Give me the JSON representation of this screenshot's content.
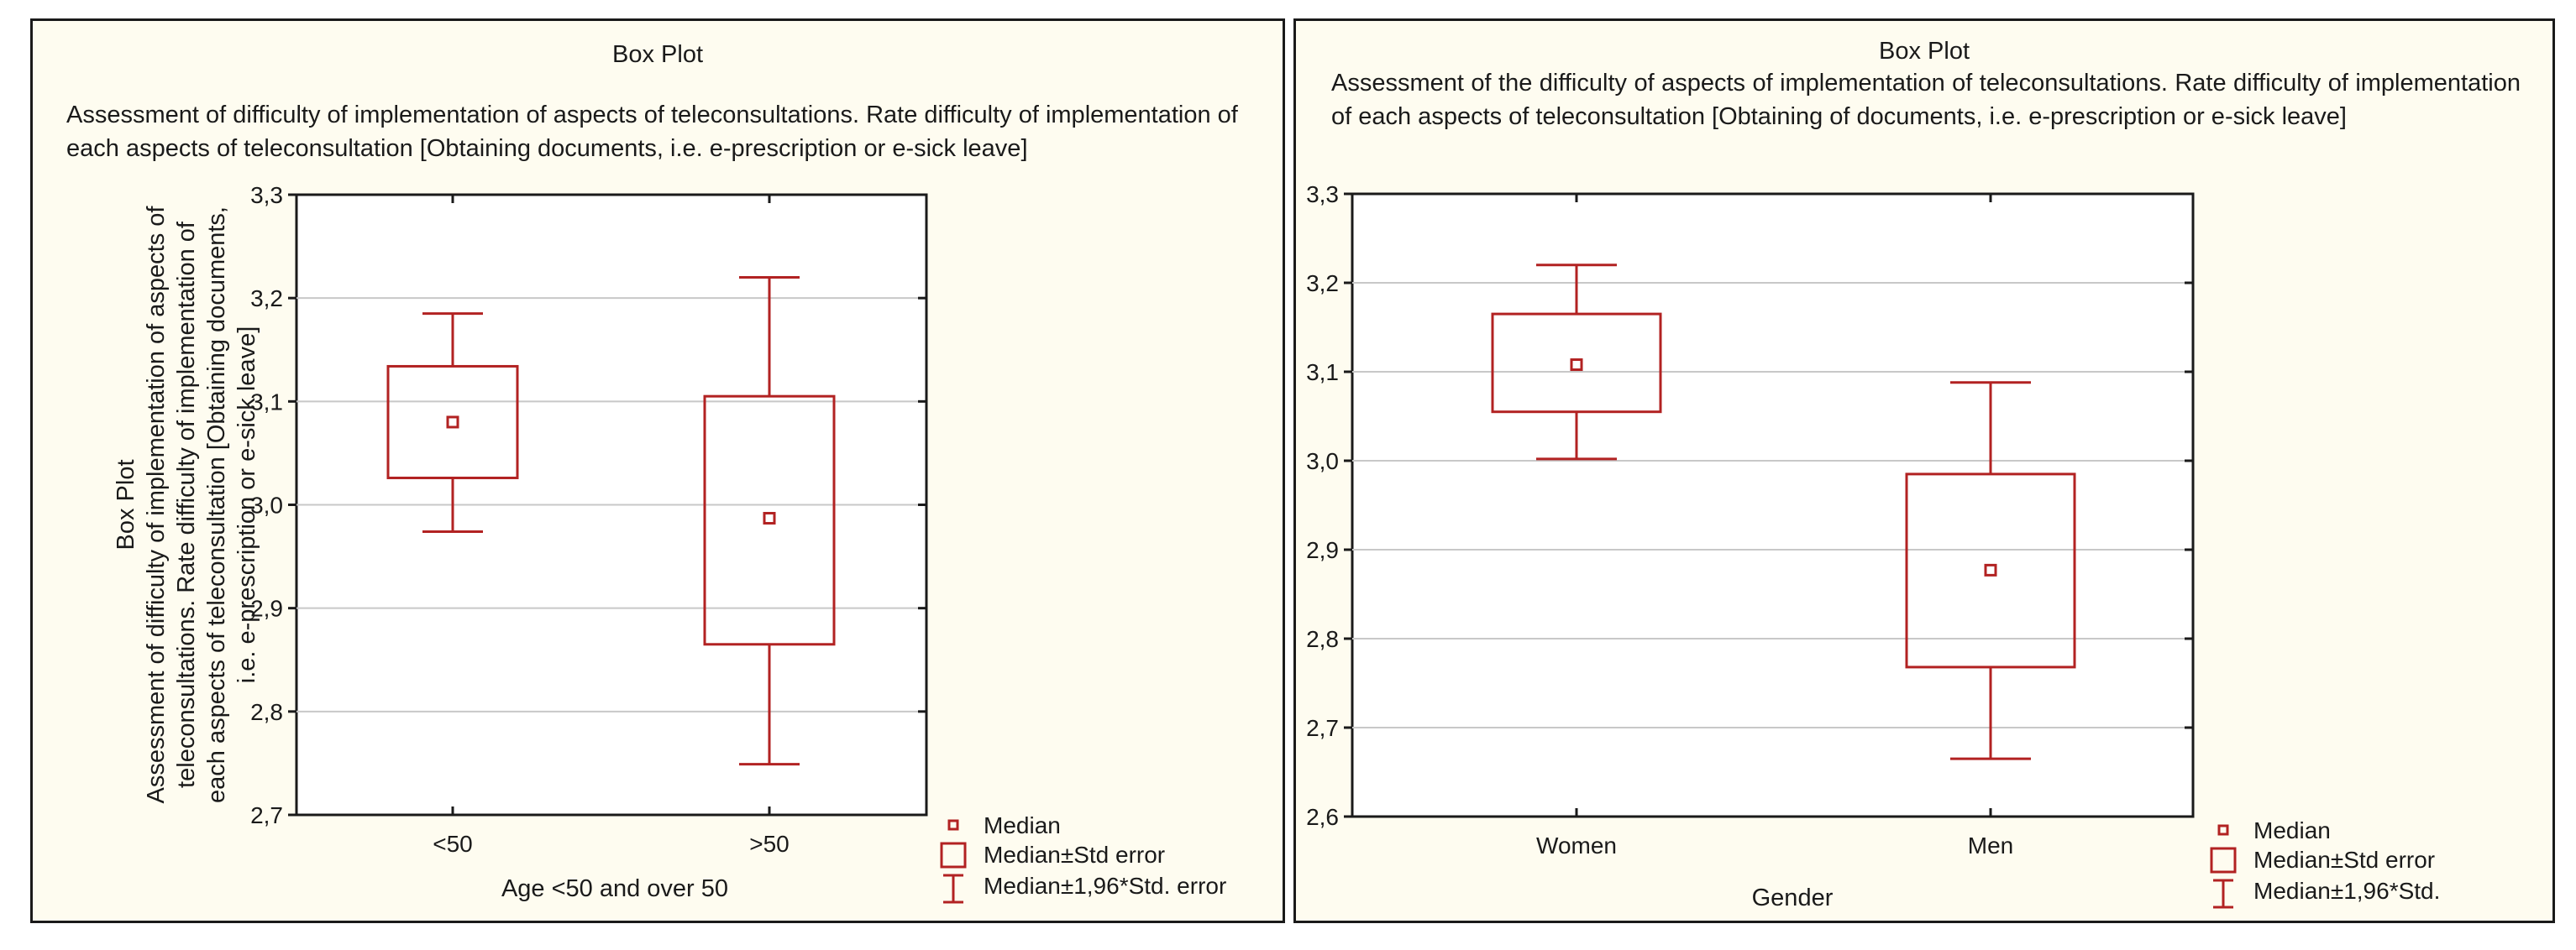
{
  "chart_data": [
    {
      "type": "box",
      "title": "Box Plot",
      "subtitle": "Assessment of difficulty of implementation of aspects of teleconsultations. Rate difficulty of implementation of each aspects of teleconsultation [Obtaining documents, i.e. e-prescription or e-sick leave]",
      "ylabel": "Box Plot\nAssessment of difficulty of implementation of aspects of\nteleconsultations.  Rate difficulty  of  implementation of\neach aspects of teleconsultation [Obtaining documents,\ni.e. e-prescription or e-sick leave]",
      "xlabel": "Age <50 and over 50",
      "ylim": [
        2.7,
        3.3
      ],
      "yticks": [
        "2,7",
        "2,8",
        "2,9",
        "3,0",
        "3,1",
        "3,2",
        "3,3"
      ],
      "grid": true,
      "categories": [
        "<50",
        ">50"
      ],
      "series": [
        {
          "name": "<50",
          "median": 3.08,
          "box_low": 3.026,
          "box_high": 3.134,
          "whisker_low": 2.974,
          "whisker_high": 3.185
        },
        {
          "name": ">50",
          "median": 2.987,
          "box_low": 2.865,
          "box_high": 3.105,
          "whisker_low": 2.749,
          "whisker_high": 3.22
        }
      ],
      "legend": [
        "Median",
        "Median±Std error",
        "Median±1,96*Std. error"
      ],
      "color": "#b22222"
    },
    {
      "type": "box",
      "title": "Box Plot",
      "subtitle": "Assessment of the difficulty of aspects of implementation of teleconsultations. Rate difficulty of implementation of each aspects of teleconsultation [Obtaining of documents, i.e. e-prescription or e-sick leave]",
      "ylabel": "",
      "xlabel": "Gender",
      "ylim": [
        2.6,
        3.3
      ],
      "yticks": [
        "2,6",
        "2,7",
        "2,8",
        "2,9",
        "3,0",
        "3,1",
        "3,2",
        "3,3"
      ],
      "grid": true,
      "categories": [
        "Women",
        "Men"
      ],
      "series": [
        {
          "name": "Women",
          "median": 3.108,
          "box_low": 3.055,
          "box_high": 3.165,
          "whisker_low": 3.002,
          "whisker_high": 3.22
        },
        {
          "name": "Men",
          "median": 2.877,
          "box_low": 2.768,
          "box_high": 2.985,
          "whisker_low": 2.665,
          "whisker_high": 3.088
        }
      ],
      "legend": [
        "Median",
        "Median±Std error",
        "Median±1,96*Std."
      ],
      "color": "#b22222"
    }
  ]
}
